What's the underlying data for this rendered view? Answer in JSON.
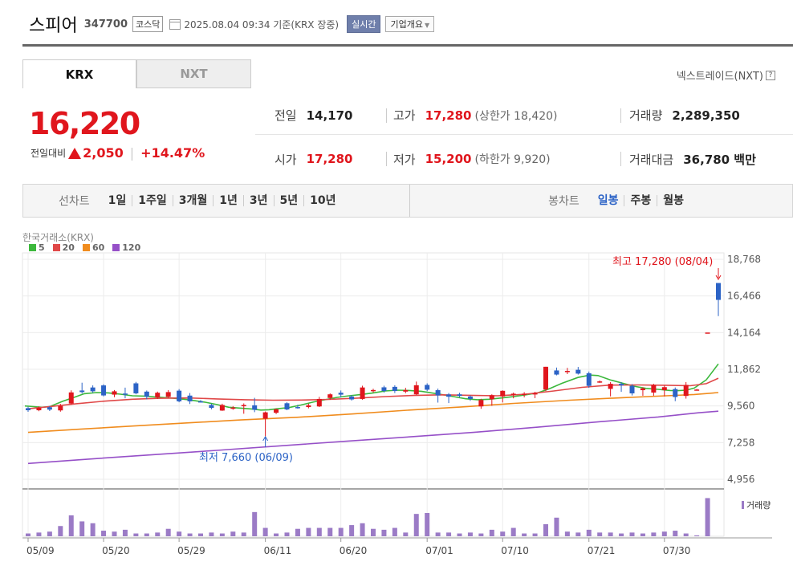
{
  "header": {
    "stock_name": "스피어",
    "stock_code": "347700",
    "market": "코스닥",
    "timestamp": "2025.08.04 09:34 기준(KRX 장중)",
    "realtime_label": "실시간",
    "company_label": "기업개요"
  },
  "tabs": [
    {
      "label": "KRX",
      "active": true
    },
    {
      "label": "NXT",
      "active": false
    }
  ],
  "nxt_link": "넥스트레이드(NXT)",
  "price": {
    "current": "16,220",
    "change_label": "전일대비",
    "change": "2,050",
    "change_pct": "+14.47%"
  },
  "stats": {
    "prev_close": {
      "label": "전일",
      "value": "14,170"
    },
    "high": {
      "label": "고가",
      "value": "17,280",
      "sub": "(상한가 18,420)"
    },
    "volume": {
      "label": "거래량",
      "value": "2,289,350"
    },
    "open": {
      "label": "시가",
      "value": "17,280"
    },
    "low": {
      "label": "저가",
      "value": "15,200",
      "sub": "(하한가 9,920)"
    },
    "amount": {
      "label": "거래대금",
      "value": "36,780 백만"
    }
  },
  "period_bar": {
    "line_chart_label": "선차트",
    "line_items": [
      "1일",
      "1주일",
      "3개월",
      "1년",
      "3년",
      "5년",
      "10년"
    ],
    "candle_chart_label": "봉차트",
    "candle_items": [
      "일봉",
      "주봉",
      "월봉"
    ],
    "active_candle": "일봉"
  },
  "chart_source": "한국거래소(KRX)",
  "ma_legend": [
    {
      "label": "5",
      "color": "#3cb83c"
    },
    {
      "label": "20",
      "color": "#e04848"
    },
    {
      "label": "60",
      "color": "#f08c1e"
    },
    {
      "label": "120",
      "color": "#9650c8"
    }
  ],
  "volume_legend": "거래량",
  "colors": {
    "up": "#e0161d",
    "down": "#2c63c6",
    "volume": "#9b7bc6"
  },
  "chart_data": {
    "type": "candlestick",
    "y_ticks": [
      "18,768",
      "16,466",
      "14,164",
      "11,862",
      "9,560",
      "7,258",
      "4,956"
    ],
    "ylim": [
      4956,
      18768
    ],
    "x_ticks": [
      "05/09",
      "05/20",
      "05/29",
      "06/11",
      "06/20",
      "07/01",
      "07/10",
      "07/21",
      "07/30"
    ],
    "annotations": {
      "high": "최고 17,280 (08/04)",
      "low": "최저 7,660 (06/09)"
    },
    "candles": [
      {
        "o": 9420,
        "c": 9290,
        "h": 9510,
        "l": 9190
      },
      {
        "o": 9290,
        "c": 9440,
        "h": 9530,
        "l": 9230
      },
      {
        "o": 9480,
        "c": 9330,
        "h": 9560,
        "l": 9240
      },
      {
        "o": 9280,
        "c": 9560,
        "h": 9690,
        "l": 9200
      },
      {
        "o": 9710,
        "c": 10410,
        "h": 10540,
        "l": 9640
      },
      {
        "o": 10530,
        "c": 10430,
        "h": 11020,
        "l": 10340
      },
      {
        "o": 10720,
        "c": 10480,
        "h": 10850,
        "l": 10390
      },
      {
        "o": 10850,
        "c": 10220,
        "h": 10920,
        "l": 10160
      },
      {
        "o": 10270,
        "c": 10480,
        "h": 10560,
        "l": 10110
      },
      {
        "o": 10340,
        "c": 10330,
        "h": 10710,
        "l": 10040
      },
      {
        "o": 10980,
        "c": 10350,
        "h": 11070,
        "l": 10290
      },
      {
        "o": 10460,
        "c": 10140,
        "h": 10530,
        "l": 9970
      },
      {
        "o": 10100,
        "c": 10390,
        "h": 10460,
        "l": 10010
      },
      {
        "o": 10130,
        "c": 10430,
        "h": 10550,
        "l": 10060
      },
      {
        "o": 10520,
        "c": 9850,
        "h": 10620,
        "l": 9790
      },
      {
        "o": 10210,
        "c": 9850,
        "h": 10370,
        "l": 9680
      },
      {
        "o": 9850,
        "c": 9840,
        "h": 9930,
        "l": 9780
      },
      {
        "o": 9620,
        "c": 9440,
        "h": 9700,
        "l": 9350
      },
      {
        "o": 9270,
        "c": 9620,
        "h": 9700,
        "l": 9250
      },
      {
        "o": 9380,
        "c": 9460,
        "h": 9550,
        "l": 9320
      },
      {
        "o": 9540,
        "c": 9620,
        "h": 9720,
        "l": 9070
      },
      {
        "o": 9600,
        "c": 9320,
        "h": 10070,
        "l": 9170
      },
      {
        "o": 8760,
        "c": 9160,
        "h": 9210,
        "l": 7660
      },
      {
        "o": 9130,
        "c": 9350,
        "h": 9400,
        "l": 9050
      },
      {
        "o": 9730,
        "c": 9340,
        "h": 9790,
        "l": 9290
      },
      {
        "o": 9490,
        "c": 9470,
        "h": 9630,
        "l": 9390
      },
      {
        "o": 9490,
        "c": 9600,
        "h": 9700,
        "l": 9410
      },
      {
        "o": 9530,
        "c": 10000,
        "h": 10130,
        "l": 9490
      },
      {
        "o": 10060,
        "c": 10290,
        "h": 10350,
        "l": 9950
      },
      {
        "o": 10390,
        "c": 10270,
        "h": 10530,
        "l": 10110
      },
      {
        "o": 10150,
        "c": 9970,
        "h": 10240,
        "l": 9900
      },
      {
        "o": 10000,
        "c": 10720,
        "h": 10830,
        "l": 9950
      },
      {
        "o": 10540,
        "c": 10560,
        "h": 10640,
        "l": 10400
      },
      {
        "o": 10730,
        "c": 10500,
        "h": 10830,
        "l": 10400
      },
      {
        "o": 10760,
        "c": 10500,
        "h": 10860,
        "l": 10370
      },
      {
        "o": 10460,
        "c": 10560,
        "h": 10700,
        "l": 10360
      },
      {
        "o": 10290,
        "c": 10860,
        "h": 11090,
        "l": 10250
      },
      {
        "o": 10880,
        "c": 10580,
        "h": 10980,
        "l": 10490
      },
      {
        "o": 10550,
        "c": 10220,
        "h": 10650,
        "l": 9770
      },
      {
        "o": 10280,
        "c": 10140,
        "h": 10370,
        "l": 9740
      },
      {
        "o": 10290,
        "c": 10190,
        "h": 10390,
        "l": 10110
      },
      {
        "o": 10150,
        "c": 10000,
        "h": 10220,
        "l": 9880
      },
      {
        "o": 9530,
        "c": 9930,
        "h": 10010,
        "l": 9380
      },
      {
        "o": 9980,
        "c": 10230,
        "h": 10290,
        "l": 9570
      },
      {
        "o": 10160,
        "c": 10510,
        "h": 10540,
        "l": 9780
      },
      {
        "o": 10260,
        "c": 10330,
        "h": 10400,
        "l": 10040
      },
      {
        "o": 10260,
        "c": 10330,
        "h": 10430,
        "l": 10100
      },
      {
        "o": 10280,
        "c": 10360,
        "h": 10450,
        "l": 10050
      },
      {
        "o": 10590,
        "c": 12020,
        "h": 12020,
        "l": 10490
      },
      {
        "o": 11790,
        "c": 11530,
        "h": 11970,
        "l": 11480
      },
      {
        "o": 11760,
        "c": 11760,
        "h": 11950,
        "l": 11560
      },
      {
        "o": 11830,
        "c": 11590,
        "h": 12010,
        "l": 11530
      },
      {
        "o": 11610,
        "c": 10820,
        "h": 11720,
        "l": 10700
      },
      {
        "o": 11050,
        "c": 11100,
        "h": 11160,
        "l": 11010
      },
      {
        "o": 10630,
        "c": 10950,
        "h": 11060,
        "l": 10160
      },
      {
        "o": 10950,
        "c": 10850,
        "h": 11060,
        "l": 10450
      },
      {
        "o": 10820,
        "c": 10350,
        "h": 10930,
        "l": 10220
      },
      {
        "o": 10550,
        "c": 10660,
        "h": 10730,
        "l": 10200
      },
      {
        "o": 10400,
        "c": 10870,
        "h": 10950,
        "l": 10200
      },
      {
        "o": 10550,
        "c": 10740,
        "h": 10840,
        "l": 10160
      },
      {
        "o": 10620,
        "c": 10120,
        "h": 10720,
        "l": 9860
      },
      {
        "o": 10190,
        "c": 10880,
        "h": 11060,
        "l": 10020
      },
      {
        "o": 10570,
        "c": 10590,
        "h": 10630,
        "l": 10550
      },
      {
        "o": 14170,
        "c": 14170,
        "h": 14170,
        "l": 14170
      },
      {
        "o": 17280,
        "c": 16220,
        "h": 17280,
        "l": 15200
      }
    ],
    "volume_rel": [
      6,
      8,
      10,
      22,
      45,
      32,
      28,
      12,
      10,
      14,
      6,
      6,
      8,
      16,
      10,
      6,
      6,
      8,
      6,
      10,
      8,
      52,
      18,
      6,
      8,
      16,
      18,
      18,
      18,
      18,
      24,
      28,
      16,
      14,
      18,
      8,
      48,
      50,
      8,
      8,
      6,
      8,
      6,
      14,
      10,
      18,
      6,
      6,
      26,
      40,
      10,
      8,
      14,
      8,
      8,
      6,
      8,
      6,
      8,
      10,
      12,
      6,
      2,
      82,
      0
    ],
    "ma": {
      "ma5": [
        [
          9560,
          31
        ],
        [
          9520,
          42
        ],
        [
          9480,
          52
        ],
        [
          9520,
          62
        ],
        [
          9850,
          78
        ],
        [
          10150,
          95
        ],
        [
          10330,
          105
        ],
        [
          10400,
          120
        ],
        [
          10380,
          135
        ],
        [
          10300,
          150
        ],
        [
          10200,
          165
        ],
        [
          10180,
          180
        ],
        [
          10120,
          195
        ],
        [
          10050,
          215
        ],
        [
          9950,
          235
        ],
        [
          9800,
          255
        ],
        [
          9650,
          270
        ],
        [
          9480,
          285
        ],
        [
          9420,
          300
        ],
        [
          9360,
          315
        ],
        [
          9300,
          325
        ],
        [
          9320,
          335
        ],
        [
          9380,
          345
        ],
        [
          9460,
          360
        ],
        [
          9620,
          375
        ],
        [
          9800,
          390
        ],
        [
          9950,
          405
        ],
        [
          10100,
          420
        ],
        [
          10200,
          435
        ],
        [
          10280,
          450
        ],
        [
          10380,
          465
        ],
        [
          10500,
          480
        ],
        [
          10550,
          495
        ],
        [
          10530,
          510
        ],
        [
          10480,
          525
        ],
        [
          10320,
          545
        ],
        [
          10150,
          565
        ],
        [
          10010,
          580
        ],
        [
          9950,
          595
        ],
        [
          9980,
          610
        ],
        [
          10060,
          625
        ],
        [
          10150,
          640
        ],
        [
          10260,
          655
        ],
        [
          10380,
          670
        ],
        [
          10650,
          685
        ],
        [
          10980,
          700
        ],
        [
          11350,
          720
        ],
        [
          11500,
          735
        ],
        [
          11470,
          745
        ],
        [
          11200,
          760
        ],
        [
          11000,
          775
        ],
        [
          10800,
          790
        ],
        [
          10660,
          805
        ],
        [
          10600,
          820
        ],
        [
          10530,
          835
        ],
        [
          10520,
          845
        ],
        [
          10550,
          855
        ],
        [
          10680,
          865
        ],
        [
          11200,
          880
        ],
        [
          12200,
          895
        ]
      ],
      "ma20": [
        [
          9380,
          35
        ],
        [
          9510,
          60
        ],
        [
          9700,
          95
        ],
        [
          9860,
          130
        ],
        [
          9980,
          165
        ],
        [
          10040,
          200
        ],
        [
          10060,
          235
        ],
        [
          10000,
          270
        ],
        [
          9950,
          305
        ],
        [
          9920,
          340
        ],
        [
          9930,
          375
        ],
        [
          9970,
          410
        ],
        [
          10050,
          445
        ],
        [
          10150,
          480
        ],
        [
          10220,
          515
        ],
        [
          10260,
          550
        ],
        [
          10230,
          585
        ],
        [
          10200,
          620
        ],
        [
          10300,
          655
        ],
        [
          10500,
          690
        ],
        [
          10730,
          725
        ],
        [
          10870,
          760
        ],
        [
          10880,
          795
        ],
        [
          10860,
          830
        ],
        [
          10830,
          860
        ],
        [
          10960,
          880
        ],
        [
          11300,
          895
        ]
      ],
      "ma60": [
        [
          7900,
          35
        ],
        [
          8100,
          100
        ],
        [
          8300,
          165
        ],
        [
          8500,
          235
        ],
        [
          8680,
          300
        ],
        [
          8850,
          370
        ],
        [
          9060,
          440
        ],
        [
          9300,
          510
        ],
        [
          9500,
          575
        ],
        [
          9720,
          640
        ],
        [
          9920,
          710
        ],
        [
          10080,
          775
        ],
        [
          10200,
          830
        ],
        [
          10280,
          865
        ],
        [
          10400,
          895
        ]
      ],
      "ma120": [
        [
          5950,
          35
        ],
        [
          6220,
          110
        ],
        [
          6500,
          190
        ],
        [
          6770,
          270
        ],
        [
          7060,
          350
        ],
        [
          7340,
          430
        ],
        [
          7620,
          510
        ],
        [
          7900,
          590
        ],
        [
          8230,
          670
        ],
        [
          8580,
          750
        ],
        [
          8870,
          820
        ],
        [
          9130,
          870
        ],
        [
          9230,
          895
        ]
      ]
    }
  }
}
